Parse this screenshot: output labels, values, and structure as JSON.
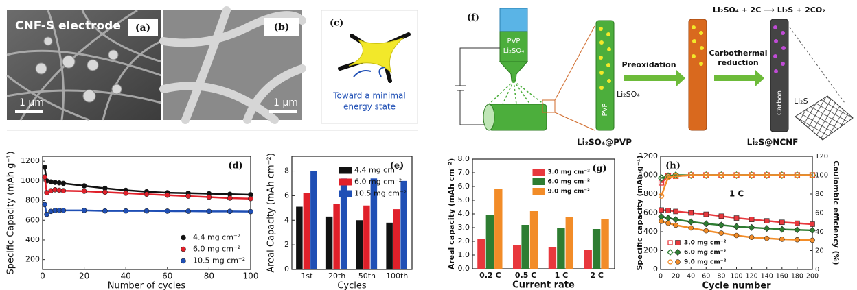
{
  "panels": {
    "a": {
      "label": "(a)",
      "caption": "CNF-S electrode",
      "scale_bar": "1 μm"
    },
    "b": {
      "label": "(b)",
      "scale_bar": "1 μm"
    },
    "c": {
      "label": "(c)",
      "caption": [
        "Toward a minimal",
        "energy state"
      ]
    },
    "f": {
      "label": "(f)",
      "syringe": [
        "PVP",
        "Li₂SO₄"
      ],
      "reaction": "Li₂SO₄ + 2C ⟶ Li₂S + 2CO₂",
      "fiber1_text": "PVP",
      "fiber1_label": "Li₂SO₄",
      "step1": "Preoxidation",
      "step2": [
        "Carbothermal",
        "reduction"
      ],
      "fiber3_text": "Carbon",
      "fiber3_label": "Li₂S",
      "product1": "Li₂SO₄@PVP",
      "product2": "Li₂S@NCNF"
    }
  },
  "chart_data": [
    {
      "type": "line",
      "title": "(d)",
      "x_label": "Number of cycles",
      "y_label": "Specific Capacity (mAh g⁻¹)",
      "x": [
        1,
        2,
        4,
        6,
        8,
        10,
        20,
        30,
        40,
        50,
        60,
        70,
        80,
        90,
        100
      ],
      "xlim": [
        0,
        100
      ],
      "xticks": [
        0,
        20,
        40,
        60,
        80,
        100
      ],
      "ylim": [
        100,
        1250
      ],
      "yticks": [
        200,
        400,
        600,
        800,
        1000,
        1200
      ],
      "legend": "lower right",
      "series": [
        {
          "name": "4.4 mg cm⁻²",
          "color": "#111111",
          "marker": "circle",
          "values": [
            1140,
            1000,
            990,
            985,
            980,
            975,
            950,
            925,
            905,
            890,
            880,
            875,
            870,
            865,
            860
          ]
        },
        {
          "name": "6.0 mg cm⁻²",
          "color": "#e0202a",
          "marker": "circle",
          "values": [
            1040,
            880,
            900,
            910,
            905,
            900,
            895,
            885,
            875,
            865,
            855,
            845,
            835,
            825,
            820
          ]
        },
        {
          "name": "10.5 mg cm⁻²",
          "color": "#1f4fb5",
          "marker": "circle",
          "values": [
            760,
            660,
            690,
            700,
            700,
            700,
            700,
            695,
            695,
            695,
            693,
            692,
            690,
            690,
            688
          ]
        }
      ]
    },
    {
      "type": "bar",
      "title": "(e)",
      "x_label": "Cycles",
      "y_label": "Areal Capacity (mAh cm⁻²)",
      "categories": [
        "1st",
        "20th",
        "50th",
        "100th"
      ],
      "ylim": [
        0,
        9.2
      ],
      "yticks": [
        0,
        2,
        4,
        6,
        8
      ],
      "legend": "upper right",
      "series": [
        {
          "name": "4.4 mg cm⁻²",
          "color": "#111111",
          "values": [
            5.1,
            4.3,
            4.0,
            3.8
          ]
        },
        {
          "name": "6.0 mg cm⁻²",
          "color": "#e0202a",
          "values": [
            6.2,
            5.3,
            5.2,
            4.9
          ]
        },
        {
          "name": "10.5 mg cm⁻²",
          "color": "#1f4fb5",
          "values": [
            8.0,
            7.4,
            7.4,
            7.2
          ]
        }
      ]
    },
    {
      "type": "bar",
      "title": "(g)",
      "x_label": "Current rate",
      "y_label": "Areal capacity (mAh cm⁻²)",
      "categories": [
        "0.2 C",
        "0.5 C",
        "1 C",
        "2 C"
      ],
      "ylim": [
        0,
        8
      ],
      "yticks": [
        {
          "value": 0,
          "label": "0.0"
        },
        {
          "value": 1,
          "label": "1.0"
        },
        {
          "value": 2,
          "label": "2.0"
        },
        {
          "value": 3,
          "label": "3.0"
        },
        {
          "value": 4,
          "label": "4.0"
        },
        {
          "value": 5,
          "label": "5.0"
        },
        {
          "value": 6,
          "label": "6.0"
        },
        {
          "value": 7,
          "label": "7.0"
        },
        {
          "value": 8,
          "label": "8.0"
        }
      ],
      "legend": "upper center",
      "series": [
        {
          "name": "3.0 mg cm⁻²",
          "color": "#e8383d",
          "values": [
            2.2,
            1.7,
            1.6,
            1.4
          ]
        },
        {
          "name": "6.0 mg cm⁻²",
          "color": "#2e7d32",
          "values": [
            3.9,
            3.2,
            3.0,
            2.9
          ]
        },
        {
          "name": "9.0 mg cm⁻²",
          "color": "#f28c28",
          "values": [
            5.8,
            4.2,
            3.8,
            3.6
          ]
        }
      ]
    },
    {
      "type": "line",
      "title": "(h)",
      "annotation": "1 C",
      "x_label": "Cycle number",
      "y_label": "Specific capacity (mAh g⁻¹)",
      "y2_label": "Coulombic efficiency (%)",
      "x": [
        1,
        10,
        20,
        40,
        60,
        80,
        100,
        120,
        140,
        160,
        180,
        200
      ],
      "xlim": [
        0,
        200
      ],
      "xticks": [
        0,
        20,
        40,
        60,
        80,
        100,
        120,
        140,
        160,
        180,
        200
      ],
      "ylim": [
        0,
        1200
      ],
      "yticks": [
        0,
        200,
        400,
        600,
        800,
        1000,
        1200
      ],
      "y2lim": [
        0,
        120
      ],
      "y2ticks": [
        0,
        20,
        40,
        60,
        80,
        100,
        120
      ],
      "legend": "lower left",
      "series": [
        {
          "name": "3.0 mg cm⁻²",
          "color": "#e8383d",
          "marker": "square",
          "values": [
            630,
            625,
            615,
            600,
            585,
            565,
            545,
            530,
            515,
            500,
            490,
            480
          ]
        },
        {
          "name": "6.0 mg cm⁻²",
          "color": "#2e7d32",
          "marker": "diamond",
          "values": [
            560,
            545,
            530,
            505,
            485,
            470,
            455,
            445,
            435,
            425,
            420,
            415
          ]
        },
        {
          "name": "9.0 mg cm⁻²",
          "color": "#f28c28",
          "marker": "circle",
          "values": [
            510,
            490,
            470,
            440,
            410,
            385,
            360,
            340,
            330,
            320,
            315,
            310
          ]
        },
        {
          "color": "#e8383d",
          "marker": "square-open",
          "axis": "y2",
          "values": [
            92,
            99,
            99,
            100,
            100,
            100,
            100,
            100,
            100,
            100,
            100,
            100
          ]
        },
        {
          "color": "#2e7d32",
          "marker": "diamond-open",
          "axis": "y2",
          "values": [
            97,
            99,
            100,
            100,
            100,
            100,
            100,
            100,
            100,
            100,
            100,
            100
          ]
        },
        {
          "color": "#f28c28",
          "marker": "circle-open",
          "axis": "y2",
          "values": [
            78,
            98,
            99,
            100,
            100,
            100,
            100,
            100,
            100,
            100,
            100,
            100
          ]
        }
      ]
    }
  ]
}
